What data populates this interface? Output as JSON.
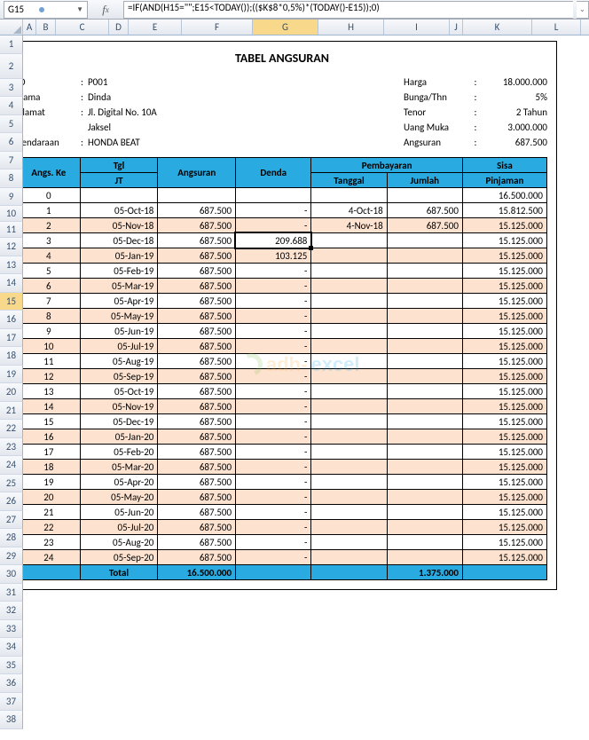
{
  "namebox": "G15",
  "formula": "=IF(AND(H15=\"\";E15<TODAY());(($K$8*0,5%)*(TODAY()-E15));0)",
  "columns": [
    {
      "l": "A",
      "w": 15
    },
    {
      "l": "B",
      "w": 22
    },
    {
      "l": "C",
      "w": 60
    },
    {
      "l": "D",
      "w": 22
    },
    {
      "l": "E",
      "w": 60
    },
    {
      "l": "F",
      "w": 80
    },
    {
      "l": "G",
      "w": 74,
      "active": true
    },
    {
      "l": "H",
      "w": 74
    },
    {
      "l": "I",
      "w": 74
    },
    {
      "l": "J",
      "w": 15
    },
    {
      "l": "K",
      "w": 78
    },
    {
      "l": "L",
      "w": 55
    }
  ],
  "row_count": 38,
  "active_row": 15,
  "title": "TABEL ANGSURAN",
  "info_left": [
    {
      "k": "ID",
      "v": "P001"
    },
    {
      "k": "Nama",
      "v": "Dinda"
    },
    {
      "k": "Alamat",
      "v": "Jl. Digital No. 10A"
    },
    {
      "k": "",
      "v": "Jaksel"
    },
    {
      "k": "Kendaraan",
      "v": "HONDA BEAT"
    }
  ],
  "info_right": [
    {
      "k": "Harga",
      "v": "18.000.000"
    },
    {
      "k": "Bunga/Thn",
      "v": "5%"
    },
    {
      "k": "Tenor",
      "v": "2 Tahun"
    },
    {
      "k": "Uang Muka",
      "v": "3.000.000"
    },
    {
      "k": "Angsuran",
      "v": "687.500"
    }
  ],
  "th": {
    "angs": "Angs. Ke",
    "tgl": "Tgl",
    "jt": "JT",
    "angsuran": "Angsuran",
    "denda": "Denda",
    "pem": "Pembayaran",
    "tanggal": "Tanggal",
    "jumlah": "Jumlah",
    "sisa": "Sisa",
    "pinj": "Pinjaman"
  },
  "rows": [
    {
      "n": "0",
      "tgl": "",
      "ang": "",
      "den": "",
      "ptgl": "",
      "pjml": "",
      "sisa": "16.500.000"
    },
    {
      "n": "1",
      "tgl": "05-Oct-18",
      "ang": "687.500",
      "den": "-",
      "ptgl": "4-Oct-18",
      "pjml": "687.500",
      "sisa": "15.812.500"
    },
    {
      "n": "2",
      "tgl": "05-Nov-18",
      "ang": "687.500",
      "den": "-",
      "ptgl": "4-Nov-18",
      "pjml": "687.500",
      "sisa": "15.125.000",
      "alt": true
    },
    {
      "n": "3",
      "tgl": "05-Dec-18",
      "ang": "687.500",
      "den": "209.688",
      "ptgl": "",
      "pjml": "",
      "sisa": "15.125.000",
      "active": true
    },
    {
      "n": "4",
      "tgl": "05-Jan-19",
      "ang": "687.500",
      "den": "103.125",
      "ptgl": "",
      "pjml": "",
      "sisa": "15.125.000",
      "alt": true
    },
    {
      "n": "5",
      "tgl": "05-Feb-19",
      "ang": "687.500",
      "den": "-",
      "ptgl": "",
      "pjml": "",
      "sisa": "15.125.000"
    },
    {
      "n": "6",
      "tgl": "05-Mar-19",
      "ang": "687.500",
      "den": "-",
      "ptgl": "",
      "pjml": "",
      "sisa": "15.125.000",
      "alt": true
    },
    {
      "n": "7",
      "tgl": "05-Apr-19",
      "ang": "687.500",
      "den": "-",
      "ptgl": "",
      "pjml": "",
      "sisa": "15.125.000"
    },
    {
      "n": "8",
      "tgl": "05-May-19",
      "ang": "687.500",
      "den": "-",
      "ptgl": "",
      "pjml": "",
      "sisa": "15.125.000",
      "alt": true
    },
    {
      "n": "9",
      "tgl": "05-Jun-19",
      "ang": "687.500",
      "den": "-",
      "ptgl": "",
      "pjml": "",
      "sisa": "15.125.000"
    },
    {
      "n": "10",
      "tgl": "05-Jul-19",
      "ang": "687.500",
      "den": "-",
      "ptgl": "",
      "pjml": "",
      "sisa": "15.125.000",
      "alt": true
    },
    {
      "n": "11",
      "tgl": "05-Aug-19",
      "ang": "687.500",
      "den": "-",
      "ptgl": "",
      "pjml": "",
      "sisa": "15.125.000"
    },
    {
      "n": "12",
      "tgl": "05-Sep-19",
      "ang": "687.500",
      "den": "-",
      "ptgl": "",
      "pjml": "",
      "sisa": "15.125.000",
      "alt": true
    },
    {
      "n": "13",
      "tgl": "05-Oct-19",
      "ang": "687.500",
      "den": "-",
      "ptgl": "",
      "pjml": "",
      "sisa": "15.125.000"
    },
    {
      "n": "14",
      "tgl": "05-Nov-19",
      "ang": "687.500",
      "den": "-",
      "ptgl": "",
      "pjml": "",
      "sisa": "15.125.000",
      "alt": true
    },
    {
      "n": "15",
      "tgl": "05-Dec-19",
      "ang": "687.500",
      "den": "-",
      "ptgl": "",
      "pjml": "",
      "sisa": "15.125.000"
    },
    {
      "n": "16",
      "tgl": "05-Jan-20",
      "ang": "687.500",
      "den": "-",
      "ptgl": "",
      "pjml": "",
      "sisa": "15.125.000",
      "alt": true
    },
    {
      "n": "17",
      "tgl": "05-Feb-20",
      "ang": "687.500",
      "den": "-",
      "ptgl": "",
      "pjml": "",
      "sisa": "15.125.000"
    },
    {
      "n": "18",
      "tgl": "05-Mar-20",
      "ang": "687.500",
      "den": "-",
      "ptgl": "",
      "pjml": "",
      "sisa": "15.125.000",
      "alt": true
    },
    {
      "n": "19",
      "tgl": "05-Apr-20",
      "ang": "687.500",
      "den": "-",
      "ptgl": "",
      "pjml": "",
      "sisa": "15.125.000"
    },
    {
      "n": "20",
      "tgl": "05-May-20",
      "ang": "687.500",
      "den": "-",
      "ptgl": "",
      "pjml": "",
      "sisa": "15.125.000",
      "alt": true
    },
    {
      "n": "21",
      "tgl": "05-Jun-20",
      "ang": "687.500",
      "den": "-",
      "ptgl": "",
      "pjml": "",
      "sisa": "15.125.000"
    },
    {
      "n": "22",
      "tgl": "05-Jul-20",
      "ang": "687.500",
      "den": "-",
      "ptgl": "",
      "pjml": "",
      "sisa": "15.125.000",
      "alt": true
    },
    {
      "n": "23",
      "tgl": "05-Aug-20",
      "ang": "687.500",
      "den": "-",
      "ptgl": "",
      "pjml": "",
      "sisa": "15.125.000"
    },
    {
      "n": "24",
      "tgl": "05-Sep-20",
      "ang": "687.500",
      "den": "-",
      "ptgl": "",
      "pjml": "",
      "sisa": "15.125.000",
      "alt": true
    }
  ],
  "total": {
    "label": "Total",
    "ang": "16.500.000",
    "pjml": "1.375.000"
  },
  "watermark": {
    "t1": "adh-",
    "t2": "excel"
  },
  "colors": {
    "header_blue": "#29abe2",
    "alt_fill": "#fde2cf",
    "active_header": "#f8d88a"
  }
}
